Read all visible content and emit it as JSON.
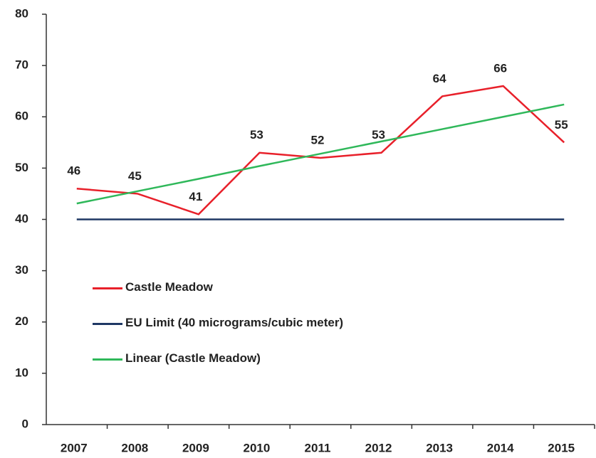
{
  "chart_data": {
    "type": "line",
    "categories": [
      "2007",
      "2008",
      "2009",
      "2010",
      "2011",
      "2012",
      "2013",
      "2014",
      "2015"
    ],
    "series": [
      {
        "name": "Castle Meadow",
        "color": "#e8202a",
        "values": [
          46,
          45,
          41,
          53,
          52,
          53,
          64,
          66,
          55
        ],
        "data_labels": true
      },
      {
        "name": "EU Limit (40 micrograms/cubic meter)",
        "color": "#1f3864",
        "values": [
          40,
          40,
          40,
          40,
          40,
          40,
          40,
          40,
          40
        ]
      },
      {
        "name": "Linear (Castle Meadow)",
        "color": "#2fb85a",
        "values": [
          43.1,
          45.5,
          47.9,
          50.4,
          52.8,
          55.2,
          57.6,
          60.0,
          62.4
        ]
      }
    ],
    "ylim": [
      0,
      80
    ],
    "yticks": [
      0,
      10,
      20,
      30,
      40,
      50,
      60,
      70,
      80
    ],
    "grid": false
  }
}
